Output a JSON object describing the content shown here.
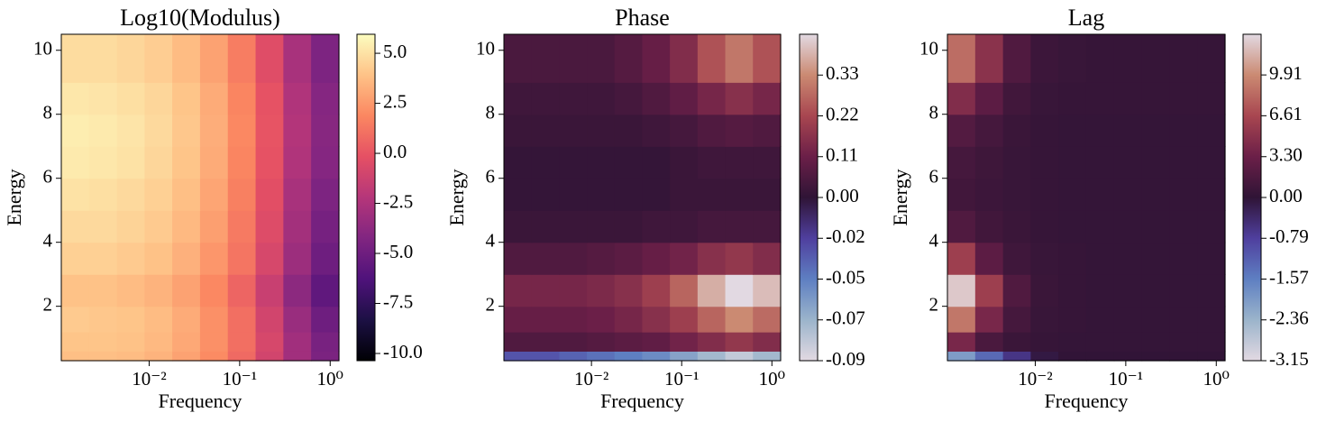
{
  "chart_data": [
    {
      "type": "heatmap",
      "title": "Log10(Modulus)",
      "xlabel": "Frequency",
      "ylabel": "Energy",
      "log_x": true,
      "xlim": [
        0.00107,
        1.25
      ],
      "ylim": [
        0.3,
        10.5
      ],
      "xticks": [
        {
          "value": 0.01,
          "label": "10⁻²"
        },
        {
          "value": 0.1,
          "label": "10⁻¹"
        },
        {
          "value": 1,
          "label": "10⁰"
        }
      ],
      "yticks": [
        2,
        4,
        6,
        8,
        10
      ],
      "xbins": [
        0.00107,
        0.00217,
        0.0044,
        0.0089,
        0.018,
        0.0365,
        0.074,
        0.15,
        0.304,
        0.616,
        1.25
      ],
      "ybins": [
        0.3,
        0.6,
        1.2,
        2.0,
        3.0,
        4.0,
        5.0,
        6.0,
        7.0,
        8.0,
        9.0,
        10.5
      ],
      "z": [
        [
          3.8,
          3.8,
          3.7,
          3.4,
          2.8,
          2.0,
          0.8,
          -1.0,
          -3.0,
          -4.5
        ],
        [
          4.0,
          4.0,
          3.9,
          3.6,
          3.0,
          2.2,
          1.0,
          -0.8,
          -3.0,
          -4.6
        ],
        [
          4.2,
          4.1,
          4.0,
          3.7,
          3.1,
          2.2,
          1.0,
          -1.0,
          -3.3,
          -5.0
        ],
        [
          3.9,
          3.9,
          3.7,
          3.4,
          2.8,
          1.9,
          0.6,
          -1.4,
          -3.8,
          -5.6
        ],
        [
          4.4,
          4.4,
          4.2,
          3.9,
          3.3,
          2.4,
          1.2,
          -0.8,
          -3.2,
          -5.0
        ],
        [
          4.7,
          4.7,
          4.5,
          4.2,
          3.6,
          2.7,
          1.4,
          -0.5,
          -2.9,
          -4.7
        ],
        [
          5.0,
          4.9,
          4.7,
          4.4,
          3.8,
          2.9,
          1.6,
          -0.3,
          -2.7,
          -4.4
        ],
        [
          5.3,
          5.2,
          5.0,
          4.6,
          4.0,
          3.1,
          1.8,
          -0.1,
          -2.4,
          -4.1
        ],
        [
          5.4,
          5.3,
          5.1,
          4.7,
          4.1,
          3.2,
          1.9,
          0.0,
          -2.3,
          -4.0
        ],
        [
          5.2,
          5.1,
          4.9,
          4.6,
          4.0,
          3.1,
          1.8,
          -0.1,
          -2.4,
          -4.1
        ],
        [
          4.8,
          4.8,
          4.6,
          4.3,
          3.7,
          2.8,
          1.5,
          -0.4,
          -2.7,
          -4.4
        ]
      ],
      "clim": [
        -10.36,
        5.95
      ],
      "cticks": [
        {
          "value": 5,
          "label": "5.0"
        },
        {
          "value": 2.5,
          "label": "2.5"
        },
        {
          "value": 0,
          "label": "0.0"
        },
        {
          "value": -2.5,
          "label": "-2.5"
        },
        {
          "value": -5,
          "label": "-5.0"
        },
        {
          "value": -7.5,
          "label": "-7.5"
        },
        {
          "value": -10,
          "label": "-10.0"
        }
      ],
      "colormap": [
        "#000004",
        "#1c1044",
        "#4f127b",
        "#812581",
        "#b5367a",
        "#e55064",
        "#fb8761",
        "#fec287",
        "#fcfdbf"
      ]
    },
    {
      "type": "heatmap",
      "title": "Phase",
      "xlabel": "Frequency",
      "ylabel": "Energy",
      "log_x": true,
      "xlim": [
        0.00107,
        1.25
      ],
      "ylim": [
        0.3,
        10.5
      ],
      "xticks": [
        {
          "value": 0.01,
          "label": "10⁻²"
        },
        {
          "value": 0.1,
          "label": "10⁻¹"
        },
        {
          "value": 1,
          "label": "10⁰"
        }
      ],
      "yticks": [
        2,
        4,
        6,
        8,
        10
      ],
      "xbins": [
        0.00107,
        0.00217,
        0.0044,
        0.0089,
        0.018,
        0.0365,
        0.074,
        0.15,
        0.304,
        0.616,
        1.25
      ],
      "ybins": [
        0.3,
        0.6,
        1.2,
        2.0,
        3.0,
        4.0,
        5.0,
        6.0,
        7.0,
        8.0,
        9.0,
        10.5
      ],
      "z": [
        [
          -0.03,
          -0.03,
          -0.035,
          -0.04,
          -0.045,
          -0.05,
          -0.06,
          -0.07,
          -0.08,
          -0.07
        ],
        [
          0.06,
          0.06,
          0.06,
          0.07,
          0.08,
          0.09,
          0.12,
          0.15,
          0.18,
          0.15
        ],
        [
          0.1,
          0.1,
          0.1,
          0.11,
          0.13,
          0.16,
          0.2,
          0.27,
          0.33,
          0.28
        ],
        [
          0.13,
          0.13,
          0.13,
          0.14,
          0.16,
          0.2,
          0.27,
          0.38,
          0.44,
          0.4
        ],
        [
          0.06,
          0.06,
          0.06,
          0.07,
          0.08,
          0.1,
          0.12,
          0.16,
          0.18,
          0.15
        ],
        [
          0.02,
          0.02,
          0.02,
          0.02,
          0.02,
          0.03,
          0.03,
          0.04,
          0.04,
          0.04
        ],
        [
          0.01,
          0.01,
          0.01,
          0.01,
          0.01,
          0.01,
          0.02,
          0.02,
          0.02,
          0.02
        ],
        [
          0.01,
          0.01,
          0.01,
          0.01,
          0.01,
          0.01,
          0.02,
          0.03,
          0.03,
          0.03
        ],
        [
          0.02,
          0.02,
          0.02,
          0.02,
          0.02,
          0.03,
          0.04,
          0.06,
          0.07,
          0.06
        ],
        [
          0.03,
          0.03,
          0.03,
          0.03,
          0.04,
          0.06,
          0.09,
          0.13,
          0.16,
          0.13
        ],
        [
          0.05,
          0.05,
          0.05,
          0.05,
          0.07,
          0.1,
          0.15,
          0.24,
          0.3,
          0.24
        ]
      ],
      "clim": [
        -0.09,
        0.44
      ],
      "vcenter": 0,
      "cticks": [
        {
          "value": 0.33,
          "label": "0.33"
        },
        {
          "value": 0.22,
          "label": "0.22"
        },
        {
          "value": 0.11,
          "label": "0.11"
        },
        {
          "value": 0,
          "label": "0.00"
        },
        {
          "value": -0.0225,
          "label": "-0.02"
        },
        {
          "value": -0.045,
          "label": "-0.05"
        },
        {
          "value": -0.0675,
          "label": "-0.07"
        },
        {
          "value": -0.09,
          "label": "-0.09"
        }
      ],
      "colormap": [
        "#e2d9e2",
        "#9bb4cb",
        "#5e7fc2",
        "#4f3f9e",
        "#2f1436",
        "#6b1f48",
        "#a84650",
        "#cb8a72",
        "#e2d9e2"
      ]
    },
    {
      "type": "heatmap",
      "title": "Lag",
      "xlabel": "Frequency",
      "ylabel": "Energy",
      "log_x": true,
      "xlim": [
        0.00107,
        1.25
      ],
      "ylim": [
        0.3,
        10.5
      ],
      "xticks": [
        {
          "value": 0.01,
          "label": "10⁻²"
        },
        {
          "value": 0.1,
          "label": "10⁻¹"
        },
        {
          "value": 1,
          "label": "10⁰"
        }
      ],
      "yticks": [
        2,
        4,
        6,
        8,
        10
      ],
      "xbins": [
        0.00107,
        0.00217,
        0.0044,
        0.0089,
        0.018,
        0.0365,
        0.074,
        0.15,
        0.304,
        0.616,
        1.25
      ],
      "ybins": [
        0.3,
        0.6,
        1.2,
        2.0,
        3.0,
        4.0,
        5.0,
        6.0,
        7.0,
        8.0,
        9.0,
        10.5
      ],
      "z": [
        [
          -2.0,
          -1.3,
          -0.6,
          -0.1,
          0.1,
          0.1,
          0.1,
          0.1,
          0.1,
          0.1
        ],
        [
          4.0,
          1.5,
          0.6,
          0.4,
          0.3,
          0.3,
          0.3,
          0.3,
          0.3,
          0.3
        ],
        [
          9.0,
          4.0,
          1.2,
          0.5,
          0.4,
          0.3,
          0.3,
          0.3,
          0.3,
          0.3
        ],
        [
          12.5,
          6.0,
          1.8,
          0.6,
          0.4,
          0.3,
          0.3,
          0.3,
          0.3,
          0.3
        ],
        [
          6.0,
          2.5,
          0.9,
          0.5,
          0.4,
          0.3,
          0.3,
          0.3,
          0.3,
          0.3
        ],
        [
          1.8,
          1.0,
          0.6,
          0.4,
          0.3,
          0.3,
          0.3,
          0.3,
          0.3,
          0.3
        ],
        [
          1.0,
          0.7,
          0.5,
          0.4,
          0.3,
          0.3,
          0.3,
          0.3,
          0.3,
          0.3
        ],
        [
          1.2,
          0.8,
          0.5,
          0.4,
          0.3,
          0.3,
          0.3,
          0.3,
          0.3,
          0.3
        ],
        [
          2.0,
          1.2,
          0.6,
          0.4,
          0.3,
          0.3,
          0.3,
          0.3,
          0.3,
          0.3
        ],
        [
          4.5,
          2.5,
          1.0,
          0.5,
          0.4,
          0.4,
          0.4,
          0.4,
          0.4,
          0.4
        ],
        [
          8.5,
          5.0,
          1.8,
          0.7,
          0.5,
          0.4,
          0.4,
          0.4,
          0.4,
          0.4
        ]
      ],
      "clim": [
        -3.15,
        13.2
      ],
      "vcenter": 0,
      "cticks": [
        {
          "value": 9.91,
          "label": "9.91"
        },
        {
          "value": 6.61,
          "label": "6.61"
        },
        {
          "value": 3.3,
          "label": "3.30"
        },
        {
          "value": 0,
          "label": "0.00"
        },
        {
          "value": -0.7875,
          "label": "-0.79"
        },
        {
          "value": -1.575,
          "label": "-1.57"
        },
        {
          "value": -2.3625,
          "label": "-2.36"
        },
        {
          "value": -3.15,
          "label": "-3.15"
        }
      ],
      "colormap": [
        "#e2d9e2",
        "#9bb4cb",
        "#5e7fc2",
        "#4f3f9e",
        "#2f1436",
        "#6b1f48",
        "#a84650",
        "#cb8a72",
        "#e2d9e2"
      ]
    }
  ]
}
